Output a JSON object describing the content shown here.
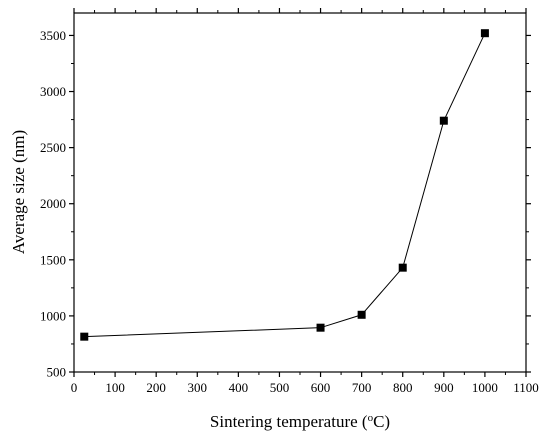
{
  "chart_data": {
    "type": "line",
    "xlabel": "Sintering temperature (",
    "xlabel_sup": "o",
    "xlabel_unit": "C)",
    "ylabel": "Average size (nm)",
    "xlim": [
      0,
      1100
    ],
    "ylim": [
      500,
      3700
    ],
    "xticks": [
      0,
      100,
      200,
      300,
      400,
      500,
      600,
      700,
      800,
      900,
      1000,
      1100
    ],
    "yticks": [
      500,
      1000,
      1500,
      2000,
      2500,
      3000,
      3500
    ],
    "grid": false,
    "legend": "none",
    "series": [
      {
        "marker": "square",
        "color": "#000000",
        "x": [
          25,
          600,
          700,
          800,
          900,
          1000
        ],
        "y": [
          815,
          895,
          1010,
          1430,
          2740,
          3520
        ]
      }
    ]
  }
}
